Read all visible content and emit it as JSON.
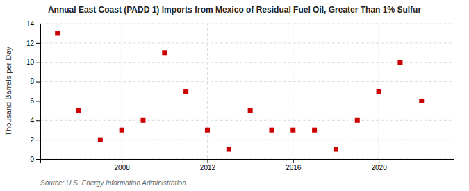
{
  "chart_data": {
    "type": "scatter",
    "title": "Annual East Coast (PADD 1) Imports from Mexico of Residual Fuel Oil, Greater Than 1% Sulfur",
    "y_label": "Thousand Barrels per Day",
    "annotations": [
      "Source: U.S. Energy Information Administration"
    ],
    "x": [
      2005,
      2006,
      2007,
      2008,
      2009,
      2010,
      2011,
      2012,
      2013,
      2014,
      2015,
      2016,
      2017,
      2018,
      2019,
      2020,
      2021,
      2022
    ],
    "values": [
      13,
      5,
      2,
      3,
      4,
      11,
      7,
      3,
      1,
      5,
      3,
      3,
      3,
      1,
      4,
      7,
      10,
      6
    ],
    "color": "#cc0000",
    "marker": "square",
    "xlim": [
      2004.2,
      2023.5
    ],
    "xticks": [
      2008,
      2012,
      2016,
      2020
    ],
    "ylim": [
      0,
      14
    ],
    "yticks": [
      0,
      2,
      4,
      6,
      8,
      10,
      12,
      14
    ],
    "grid": true
  }
}
